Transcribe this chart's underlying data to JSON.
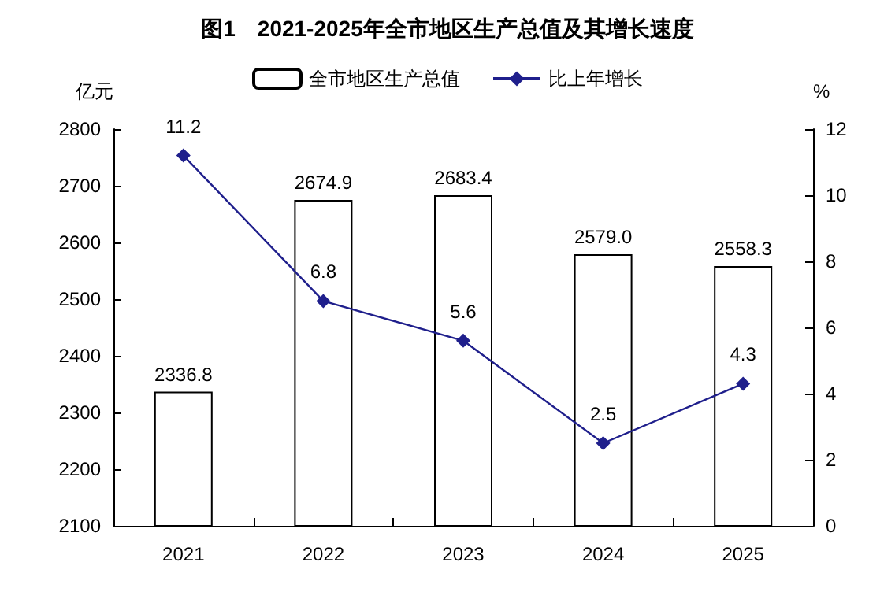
{
  "chart_data": {
    "type": "bar",
    "title": "图1　2021-2025年全市地区生产总值及其增长速度",
    "ylabel": "亿元",
    "y2label": "%",
    "categories": [
      "2021",
      "2022",
      "2023",
      "2024",
      "2025"
    ],
    "series": [
      {
        "name": "全市地区生产总值",
        "color": "#ffffff",
        "values": [
          2336.8,
          2674.9,
          2683.4,
          2579.0,
          2558.3
        ],
        "value_labels": [
          "2336.8",
          "2674.9",
          "2683.4",
          "2579.0",
          "2558.3"
        ]
      },
      {
        "name": "比上年增长",
        "type": "line",
        "axis": "y2",
        "color": "#1f1f8c",
        "marker": "diamond",
        "values": [
          11.2,
          6.8,
          5.6,
          2.5,
          4.3
        ],
        "value_labels": [
          "11.2",
          "6.8",
          "5.6",
          "2.5",
          "4.3"
        ]
      }
    ],
    "ylim": [
      2100,
      2800
    ],
    "yticks": [
      2100,
      2200,
      2300,
      2400,
      2500,
      2600,
      2700,
      2800
    ],
    "y2lim": [
      0,
      12
    ],
    "y2ticks": [
      0,
      2,
      4,
      6,
      8,
      10,
      12
    ],
    "legend": "top"
  }
}
